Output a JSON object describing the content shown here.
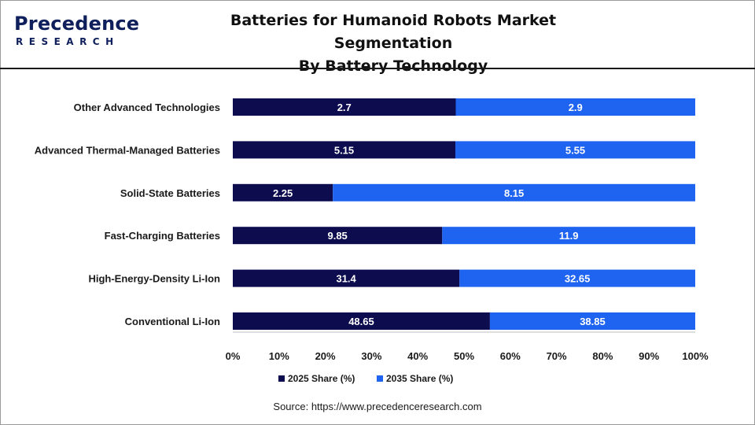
{
  "header": {
    "logo_word": "Precedence",
    "logo_sub": "RESEARCH",
    "title_line1": "Batteries for Humanoid Robots Market Segmentation",
    "title_line2": "By Battery Technology"
  },
  "source": "Source: https://www.precedenceresearch.com",
  "colors": {
    "series_2025": "#0c0c4f",
    "series_2035": "#1e64f0"
  },
  "chart_data": {
    "type": "bar",
    "stacked": true,
    "normalized_percent": true,
    "orientation": "horizontal",
    "categories": [
      "Other Advanced Technologies",
      "Advanced Thermal-Managed Batteries",
      "Solid-State Batteries",
      "Fast-Charging Batteries",
      "High-Energy-Density Li-Ion",
      "Conventional Li-Ion"
    ],
    "series": [
      {
        "name": "2025 Share (%)",
        "values": [
          2.7,
          5.15,
          2.25,
          9.85,
          31.4,
          48.65
        ],
        "labels": [
          "2.7",
          "5.15",
          "2.25",
          "9.85",
          "31.4",
          "48.65"
        ]
      },
      {
        "name": "2035 Share (%)",
        "values": [
          2.9,
          5.55,
          8.15,
          11.9,
          32.65,
          38.85
        ],
        "labels": [
          "2.9",
          "5.55",
          "8.15",
          "11.9",
          "32.65",
          "38.85"
        ]
      }
    ],
    "xlim": [
      0,
      100
    ],
    "xticks": [
      "0%",
      "10%",
      "20%",
      "30%",
      "40%",
      "50%",
      "60%",
      "70%",
      "80%",
      "90%",
      "100%"
    ],
    "legend_position": "bottom",
    "grid": false
  }
}
